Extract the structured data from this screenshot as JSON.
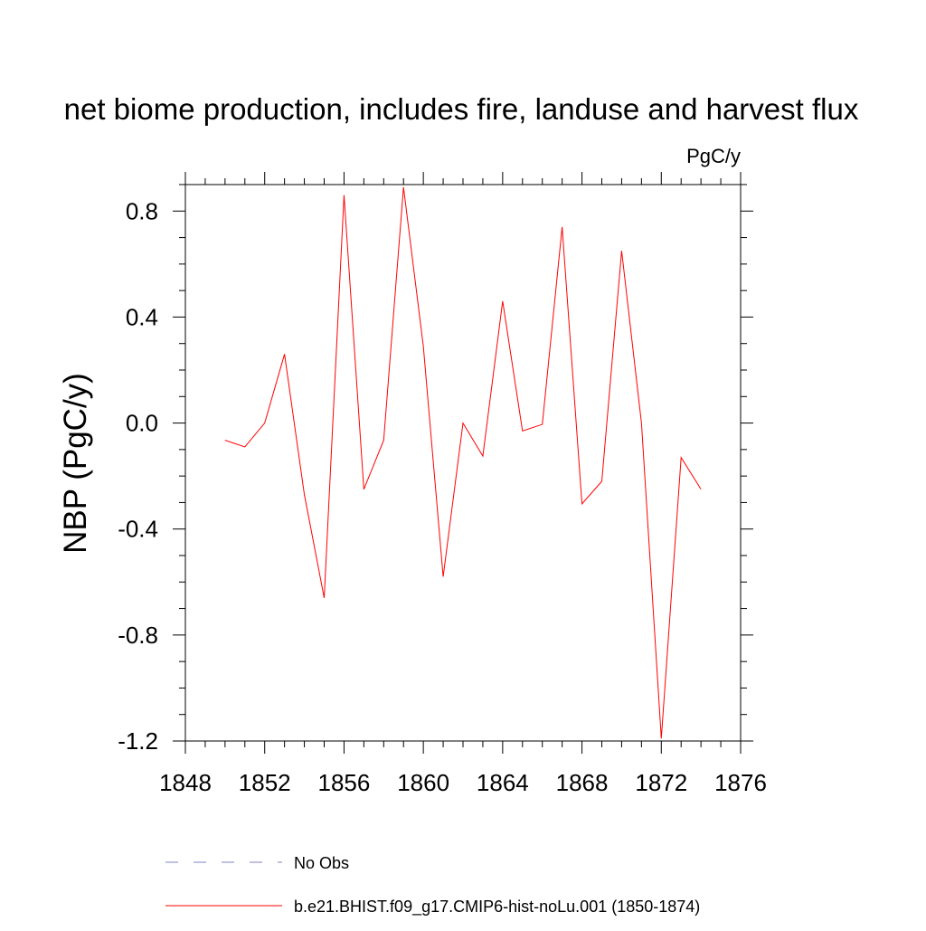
{
  "chart_data": {
    "type": "line",
    "title": "net biome production, includes fire, landuse and harvest flux",
    "units_label": "PgC/y",
    "ylabel": "NBP  (PgC/y)",
    "xlabel": "",
    "xlim": [
      1848,
      1876
    ],
    "ylim": [
      -1.2,
      0.9
    ],
    "x_ticks": [
      1848,
      1852,
      1856,
      1860,
      1864,
      1868,
      1872,
      1876
    ],
    "x_tick_labels": [
      "1848",
      "1852",
      "1856",
      "1860",
      "1864",
      "1868",
      "1872",
      "1876"
    ],
    "y_ticks": [
      -1.2,
      -0.8,
      -0.4,
      0.0,
      0.4,
      0.8
    ],
    "y_tick_labels": [
      "-1.2",
      "-0.8",
      "-0.4",
      "0.0",
      "0.4",
      "0.8"
    ],
    "grid": false,
    "legend_position": "bottom",
    "series": [
      {
        "name": "b.e21.BHIST.f09_g17.CMIP6-hist-noLu.001 (1850-1874)",
        "color": "#ff0000",
        "line_style": "solid",
        "x": [
          1850,
          1851,
          1852,
          1853,
          1854,
          1855,
          1856,
          1857,
          1858,
          1859,
          1860,
          1861,
          1862,
          1863,
          1864,
          1865,
          1866,
          1867,
          1868,
          1869,
          1870,
          1871,
          1872,
          1873,
          1874
        ],
        "values": [
          -0.065,
          -0.09,
          0.0,
          0.26,
          -0.27,
          -0.66,
          0.86,
          -0.25,
          -0.065,
          0.89,
          0.29,
          -0.58,
          0.0,
          -0.125,
          0.46,
          -0.03,
          -0.005,
          0.74,
          -0.305,
          -0.22,
          0.65,
          0.0,
          -1.19,
          -0.13,
          -0.25
        ]
      }
    ],
    "legend": [
      {
        "label": "No Obs",
        "color": "#8080c0",
        "line_style": "dashed"
      },
      {
        "label": "b.e21.BHIST.f09_g17.CMIP6-hist-noLu.001 (1850-1874)",
        "color": "#ff0000",
        "line_style": "solid"
      }
    ]
  }
}
